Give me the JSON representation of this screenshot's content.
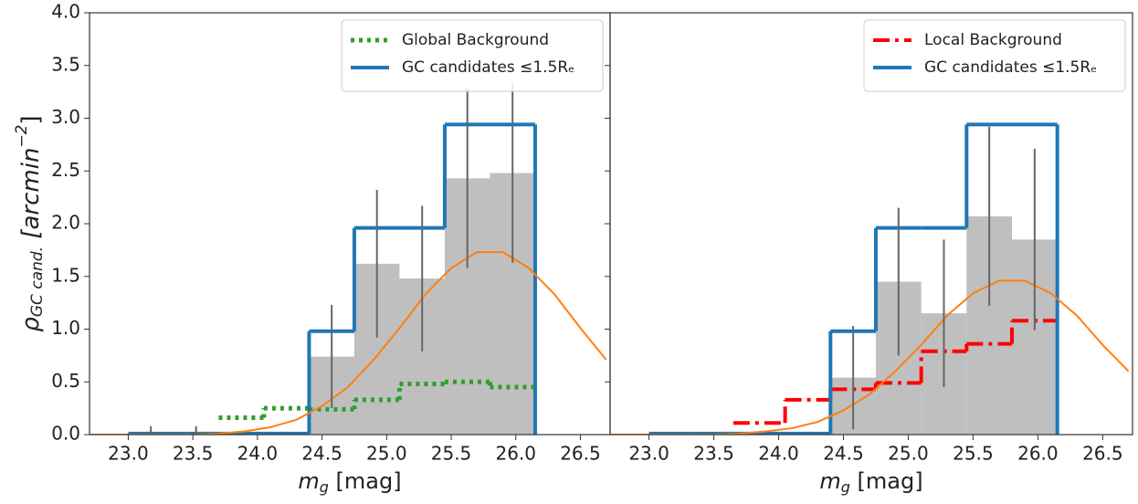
{
  "chart_data": [
    {
      "type": "histogram",
      "xlabel": {
        "symbol": "m",
        "sub": "g",
        "text": " [mag]"
      },
      "ylabel": {
        "symbol": "ρ",
        "sub": "GC cand.",
        "text": " [arcmin",
        "sup": "−2",
        "end": "]"
      },
      "xlim": [
        22.7,
        26.73
      ],
      "ylim": [
        0,
        4
      ],
      "xticks": [
        {
          "value": 23,
          "label": "23.0"
        },
        {
          "value": 23.5,
          "label": "23.5"
        },
        {
          "value": 24,
          "label": "24.0"
        },
        {
          "value": 24.5,
          "label": "24.5"
        },
        {
          "value": 25,
          "label": "25.0"
        },
        {
          "value": 25.5,
          "label": "25.5"
        },
        {
          "value": 26,
          "label": "26.0"
        },
        {
          "value": 26.5,
          "label": "26.5"
        }
      ],
      "yticks": [
        {
          "value": 0,
          "label": "0.0"
        },
        0.5,
        {
          "value": 1,
          "label": "1.0"
        },
        1.5,
        {
          "value": 2,
          "label": "2.0"
        },
        2.5,
        {
          "value": 3,
          "label": "3.0"
        },
        3.5,
        {
          "value": 4,
          "label": "4.0"
        }
      ],
      "legend": "upper right",
      "series": [
        {
          "style": "filled",
          "color": "#bfbfbf",
          "bins": [
            23.0,
            23.35,
            23.7,
            24.05,
            24.4,
            24.75,
            25.1,
            25.45,
            25.8,
            26.15
          ],
          "values": [
            0.01,
            0.01,
            0,
            0,
            0.74,
            1.62,
            1.48,
            2.43,
            2.48
          ],
          "errors": [
            0.07,
            0.07,
            null,
            null,
            0.49,
            0.7,
            0.69,
            0.85,
            0.85
          ]
        },
        {
          "name": "Global Background",
          "style": "dotted",
          "color": "#2ca02c",
          "bins": [
            23.7,
            24.05,
            24.4,
            24.75,
            25.1,
            25.45,
            25.8,
            26.15
          ],
          "values": [
            0.16,
            0.25,
            0.24,
            0.33,
            0.48,
            0.5,
            0.45
          ]
        },
        {
          "name": "GC candidates ≤1.5Rₑ",
          "style": "step",
          "color": "#1f77b4",
          "bins": [
            23.0,
            23.35,
            23.7,
            24.05,
            24.4,
            24.75,
            25.1,
            25.45,
            25.8,
            26.15
          ],
          "values": [
            0.01,
            0.01,
            0.01,
            0.01,
            0.98,
            1.96,
            1.96,
            2.94,
            2.94
          ]
        },
        {
          "style": "line",
          "color": "#ff7f0e",
          "x": [
            22.7,
            22.9,
            23.1,
            23.3,
            23.5,
            23.7,
            23.9,
            24.1,
            24.3,
            24.5,
            24.7,
            24.9,
            25.1,
            25.3,
            25.5,
            25.7,
            25.9,
            26.1,
            26.3,
            26.5,
            26.7
          ],
          "values": [
            0,
            0,
            0,
            0,
            0,
            0.01,
            0.03,
            0.07,
            0.14,
            0.27,
            0.45,
            0.71,
            1.01,
            1.33,
            1.58,
            1.73,
            1.73,
            1.58,
            1.33,
            1.01,
            0.71
          ]
        }
      ]
    },
    {
      "type": "histogram",
      "xlabel": {
        "symbol": "m",
        "sub": "g",
        "text": " [mag]"
      },
      "xlim": [
        22.7,
        26.73
      ],
      "ylim": [
        0,
        4
      ],
      "xticks": [
        {
          "value": 23,
          "label": "23.0"
        },
        {
          "value": 23.5,
          "label": "23.5"
        },
        {
          "value": 24,
          "label": "24.0"
        },
        {
          "value": 24.5,
          "label": "24.5"
        },
        {
          "value": 25,
          "label": "25.0"
        },
        {
          "value": 25.5,
          "label": "25.5"
        },
        {
          "value": 26,
          "label": "26.0"
        },
        {
          "value": 26.5,
          "label": "26.5"
        }
      ],
      "yticks": [
        0,
        0.5,
        1,
        1.5,
        2,
        2.5,
        3,
        3.5,
        4
      ],
      "legend": "upper right",
      "series": [
        {
          "style": "filled",
          "color": "#bfbfbf",
          "bins": [
            24.4,
            24.75,
            25.1,
            25.45,
            25.8,
            26.15
          ],
          "values": [
            0.54,
            1.45,
            1.15,
            2.07,
            1.85
          ],
          "errors": [
            0.49,
            0.7,
            0.7,
            0.85,
            0.86
          ]
        },
        {
          "name": "Local Background",
          "style": "dashdot",
          "color": "#ff0000",
          "bins": [
            23.65,
            24.05,
            24.4,
            24.75,
            25.1,
            25.45,
            25.8,
            26.15
          ],
          "values": [
            0.11,
            0.33,
            0.43,
            0.49,
            0.79,
            0.86,
            1.08
          ]
        },
        {
          "name": "GC candidates ≤1.5Rₑ",
          "style": "step",
          "color": "#1f77b4",
          "bins": [
            23.0,
            23.35,
            23.7,
            24.05,
            24.4,
            24.75,
            25.1,
            25.45,
            25.8,
            26.15
          ],
          "values": [
            0.01,
            0.01,
            0.01,
            0.01,
            0.98,
            1.96,
            1.96,
            2.94,
            2.94
          ]
        },
        {
          "style": "line",
          "color": "#ff7f0e",
          "x": [
            22.7,
            22.9,
            23.1,
            23.3,
            23.5,
            23.7,
            23.9,
            24.1,
            24.3,
            24.5,
            24.7,
            24.9,
            25.1,
            25.3,
            25.5,
            25.7,
            25.9,
            26.1,
            26.3,
            26.5,
            26.7
          ],
          "values": [
            0,
            0,
            0,
            0,
            0,
            0.01,
            0.03,
            0.06,
            0.12,
            0.23,
            0.38,
            0.6,
            0.85,
            1.13,
            1.34,
            1.46,
            1.46,
            1.34,
            1.13,
            0.85,
            0.6
          ]
        }
      ]
    }
  ]
}
